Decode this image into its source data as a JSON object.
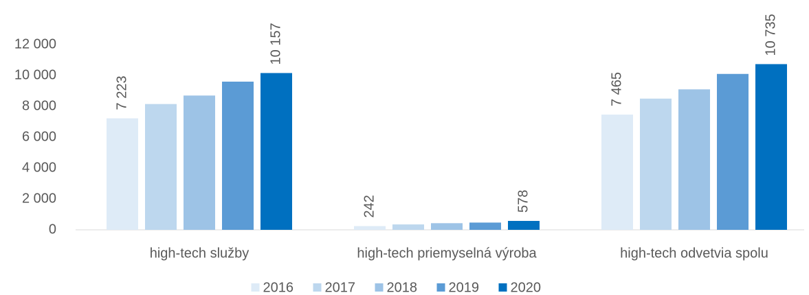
{
  "chart_data": {
    "type": "bar",
    "categories": [
      "high-tech služby",
      "high-tech priemyselná výroba",
      "high-tech odvetvia spolu"
    ],
    "series": [
      {
        "name": "2016",
        "color": "#deebf7",
        "values": [
          7223,
          242,
          7465
        ],
        "value_labels": [
          "7 223",
          "242",
          "7 465"
        ]
      },
      {
        "name": "2017",
        "color": "#bdd7ee",
        "values": [
          8150,
          350,
          8500
        ]
      },
      {
        "name": "2018",
        "color": "#9dc3e6",
        "values": [
          8700,
          430,
          9100
        ]
      },
      {
        "name": "2019",
        "color": "#5b9bd5",
        "values": [
          9600,
          470,
          10100
        ]
      },
      {
        "name": "2020",
        "color": "#0070c0",
        "values": [
          10157,
          578,
          10735
        ],
        "value_labels": [
          "10 157",
          "578",
          "10 735"
        ]
      }
    ],
    "ylim": [
      0,
      12000
    ],
    "yticks": [
      0,
      {
        "value": 2000,
        "label": "2 000"
      },
      {
        "value": 4000,
        "label": "4 000"
      },
      {
        "value": 6000,
        "label": "6 000"
      },
      {
        "value": 8000,
        "label": "8 000"
      },
      {
        "value": 10000,
        "label": "10 000"
      },
      {
        "value": 12000,
        "label": "12 000"
      }
    ],
    "grid": false,
    "legend": "bottom"
  }
}
